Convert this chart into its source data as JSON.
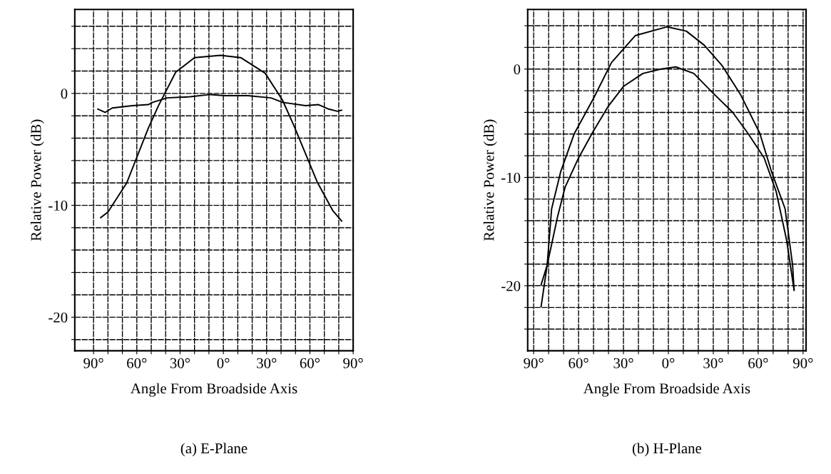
{
  "chart_data": [
    {
      "type": "line",
      "title": "(a) E-Plane",
      "xlabel": "Angle From Broadside Axis",
      "ylabel": "Relative Power (dB)",
      "xlim": [
        -103,
        90
      ],
      "ylim": [
        -23,
        7.5
      ],
      "xticks": [
        {
          "value": -90,
          "label": "90°"
        },
        {
          "value": -80,
          "label": null
        },
        {
          "value": -70,
          "label": null
        },
        {
          "value": -60,
          "label": "60°"
        },
        {
          "value": -50,
          "label": null
        },
        {
          "value": -40,
          "label": null
        },
        {
          "value": -30,
          "label": "30°"
        },
        {
          "value": -20,
          "label": null
        },
        {
          "value": -10,
          "label": null
        },
        {
          "value": 0,
          "label": "0°"
        },
        {
          "value": 10,
          "label": null
        },
        {
          "value": 20,
          "label": null
        },
        {
          "value": 30,
          "label": "30°"
        },
        {
          "value": 40,
          "label": null
        },
        {
          "value": 50,
          "label": null
        },
        {
          "value": 60,
          "label": "60°"
        },
        {
          "value": 70,
          "label": null
        },
        {
          "value": 80,
          "label": null
        },
        {
          "value": 90,
          "label": "90°"
        }
      ],
      "yticks": [
        {
          "value": 6,
          "label": null
        },
        {
          "value": 4,
          "label": null
        },
        {
          "value": 2,
          "label": null
        },
        0,
        {
          "value": -2,
          "label": null
        },
        {
          "value": -4,
          "label": null
        },
        {
          "value": -6,
          "label": null
        },
        {
          "value": -8,
          "label": null
        },
        -10,
        {
          "value": -12,
          "label": null
        },
        {
          "value": -14,
          "label": null
        },
        {
          "value": -16,
          "label": null
        },
        {
          "value": -18,
          "label": null
        },
        -20,
        {
          "value": -22,
          "label": null
        }
      ],
      "grid": true,
      "line_style": "solid",
      "series": [
        {
          "color": "#000000",
          "x": [
            -85,
            -80,
            -67,
            -52,
            -45,
            -33,
            -20,
            -2,
            12,
            29,
            41,
            49,
            65,
            76,
            82
          ],
          "values": [
            -11.1,
            -10.6,
            -8.0,
            -3.1,
            -1.1,
            1.9,
            3.2,
            3.4,
            3.2,
            1.8,
            -0.6,
            -2.9,
            -7.9,
            -10.5,
            -11.4
          ]
        },
        {
          "color": "#000000",
          "x": [
            -87,
            -82,
            -77,
            -63,
            -52,
            -49,
            -39,
            -23,
            -9,
            1,
            17,
            33,
            41,
            57,
            66,
            73,
            79,
            82
          ],
          "values": [
            -1.4,
            -1.7,
            -1.3,
            -1.1,
            -1.0,
            -0.8,
            -0.4,
            -0.3,
            -0.1,
            -0.2,
            -0.2,
            -0.4,
            -0.8,
            -1.1,
            -1.0,
            -1.4,
            -1.6,
            -1.5
          ]
        }
      ]
    },
    {
      "type": "line",
      "title": "(b) H-Plane",
      "xlabel": "Angle From Broadside Axis",
      "ylabel": "Relative Power (dB)",
      "xlim": [
        -94,
        92
      ],
      "ylim": [
        -26,
        5.5
      ],
      "xticks": [
        {
          "value": -90,
          "label": "90°"
        },
        {
          "value": -80,
          "label": null
        },
        {
          "value": -70,
          "label": null
        },
        {
          "value": -60,
          "label": "60°"
        },
        {
          "value": -50,
          "label": null
        },
        {
          "value": -40,
          "label": null
        },
        {
          "value": -30,
          "label": "30°"
        },
        {
          "value": -20,
          "label": null
        },
        {
          "value": -10,
          "label": null
        },
        {
          "value": 0,
          "label": "0°"
        },
        {
          "value": 10,
          "label": null
        },
        {
          "value": 20,
          "label": null
        },
        {
          "value": 30,
          "label": "30°"
        },
        {
          "value": 40,
          "label": null
        },
        {
          "value": 50,
          "label": null
        },
        {
          "value": 60,
          "label": "60°"
        },
        {
          "value": 70,
          "label": null
        },
        {
          "value": 80,
          "label": null
        },
        {
          "value": 90,
          "label": "90°"
        }
      ],
      "yticks": [
        {
          "value": 4,
          "label": null
        },
        {
          "value": 2,
          "label": null
        },
        0,
        {
          "value": -2,
          "label": null
        },
        {
          "value": -4,
          "label": null
        },
        {
          "value": -6,
          "label": null
        },
        {
          "value": -8,
          "label": null
        },
        -10,
        {
          "value": -12,
          "label": null
        },
        {
          "value": -14,
          "label": null
        },
        {
          "value": -16,
          "label": null
        },
        {
          "value": -18,
          "label": null
        },
        -20,
        {
          "value": -22,
          "label": null
        },
        {
          "value": -24,
          "label": null
        }
      ],
      "grid": true,
      "line_style": "solid",
      "series": [
        {
          "color": "#000000",
          "x": [
            -85,
            -81,
            -78,
            -72,
            -63,
            -50,
            -38,
            -22,
            -1,
            12,
            24,
            36,
            48,
            61,
            69,
            78,
            83,
            84
          ],
          "values": [
            -19.9,
            -18.1,
            -12.9,
            -9.5,
            -6.0,
            -2.7,
            0.6,
            3.1,
            3.9,
            3.5,
            2.2,
            0.3,
            -2.3,
            -5.9,
            -9.5,
            -12.9,
            -18.1,
            -20.4
          ]
        },
        {
          "color": "#000000",
          "x": [
            -85,
            -81,
            -74,
            -69,
            -60,
            -50,
            -40,
            -30,
            -17,
            -5,
            5,
            17,
            29,
            43,
            53,
            64,
            72,
            79,
            84
          ],
          "values": [
            -21.9,
            -18.1,
            -13.6,
            -10.9,
            -8.2,
            -5.7,
            -3.4,
            -1.6,
            -0.4,
            0.0,
            0.2,
            -0.4,
            -2.1,
            -4.0,
            -5.9,
            -8.2,
            -11.3,
            -15.8,
            -20.4
          ]
        }
      ]
    }
  ]
}
